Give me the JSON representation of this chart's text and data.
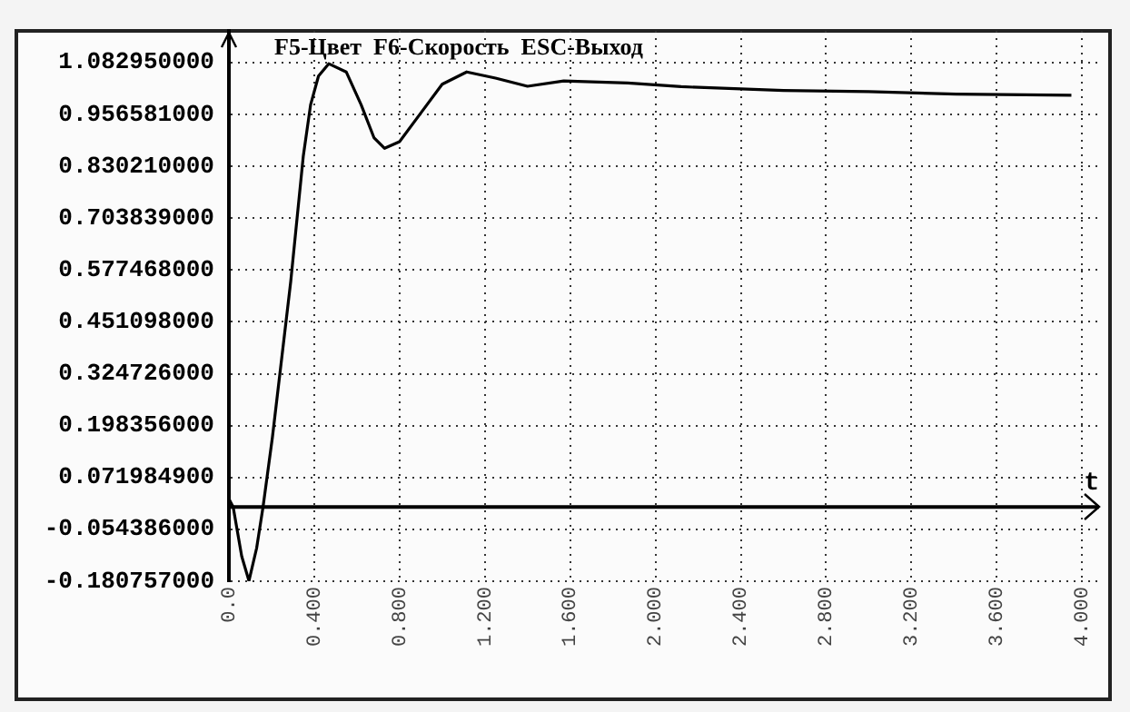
{
  "chart_data": {
    "type": "line",
    "annotations": [
      "F5-Цвет  F6-Скорость  ESC-Выход"
    ],
    "xlabel": "t",
    "x": [
      0,
      0.02,
      0.06,
      0.094,
      0.13,
      0.16,
      0.204,
      0.29,
      0.349,
      0.383,
      0.42,
      0.468,
      0.55,
      0.62,
      0.68,
      0.73,
      0.8,
      0.9,
      1.0,
      1.115,
      1.25,
      1.4,
      1.57,
      1.87,
      2.12,
      2.6,
      3.0,
      3.41,
      3.95
    ],
    "series": [
      {
        "color": "#000000",
        "values": [
          0.02,
          0.0,
          -0.12,
          -0.18,
          -0.1,
          0.0,
          0.17,
          0.55,
          0.856,
          0.98,
          1.05,
          1.08,
          1.06,
          0.98,
          0.9,
          0.874,
          0.89,
          0.96,
          1.03,
          1.06,
          1.045,
          1.025,
          1.038,
          1.033,
          1.024,
          1.015,
          1.012,
          1.006,
          1.003
        ]
      }
    ],
    "xlim": [
      0,
      4.08
    ],
    "ylim": [
      -0.180757,
      1.16
    ],
    "xticks": [
      {
        "value": 0,
        "label": "0.0"
      },
      {
        "value": 0.4,
        "label": "0.400"
      },
      {
        "value": 0.8,
        "label": "0.800"
      },
      {
        "value": 1.2,
        "label": "1.200"
      },
      {
        "value": 1.6,
        "label": "1.600"
      },
      {
        "value": 2.0,
        "label": "2.000"
      },
      {
        "value": 2.4,
        "label": "2.400"
      },
      {
        "value": 2.8,
        "label": "2.800"
      },
      {
        "value": 3.2,
        "label": "3.200"
      },
      {
        "value": 3.6,
        "label": "3.600"
      },
      {
        "value": 4.0,
        "label": "4.000"
      }
    ],
    "yticks": [
      {
        "value": 1.08295,
        "label": "1.082950000"
      },
      {
        "value": 0.956581,
        "label": "0.956581000"
      },
      {
        "value": 0.83021,
        "label": "0.830210000"
      },
      {
        "value": 0.703839,
        "label": "0.703839000"
      },
      {
        "value": 0.577468,
        "label": "0.577468000"
      },
      {
        "value": 0.451098,
        "label": "0.451098000"
      },
      {
        "value": 0.324726,
        "label": "0.324726000"
      },
      {
        "value": 0.198356,
        "label": "0.198356000"
      },
      {
        "value": 0.0719849,
        "label": "0.071984900"
      },
      {
        "value": -0.054386,
        "label": "-0.054386000"
      },
      {
        "value": -0.180757,
        "label": "-0.180757000"
      }
    ],
    "ref_lines": [
      {
        "axis": "y",
        "value": 0,
        "color": "#000000"
      }
    ],
    "grid": true,
    "marker": "none",
    "line_style": "solid",
    "legend": false
  }
}
